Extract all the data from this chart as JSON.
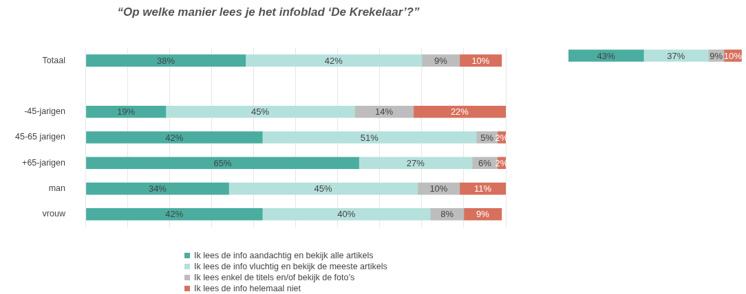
{
  "chart_data": [
    {
      "type": "bar",
      "orientation": "horizontal",
      "stacked": true,
      "title": "“Op welke manier lees je het infoblad ‘De Krekelaar’?”",
      "categories": [
        "Totaal",
        null,
        "-45-jarigen",
        "45-65 jarigen",
        "+65-jarigen",
        "man",
        "vrouw"
      ],
      "series": [
        {
          "name": "Ik lees de info aandachtig en bekijk alle artikels",
          "color": "#4aada0",
          "values": [
            38,
            null,
            19,
            42,
            65,
            34,
            42
          ],
          "value_labels": [
            "38%",
            null,
            "19%",
            "42%",
            "65%",
            "34%",
            "42%"
          ]
        },
        {
          "name": "Ik lees de info vluchtig en bekijk de meeste artikels",
          "color": "#b5e1dc",
          "values": [
            42,
            null,
            45,
            51,
            27,
            45,
            40
          ],
          "value_labels": [
            "42%",
            null,
            "45%",
            "51%",
            "27%",
            "45%",
            "40%"
          ]
        },
        {
          "name": "Ik lees enkel de titels en/of bekijk de foto’s",
          "color": "#bdbdbd",
          "values": [
            9,
            null,
            14,
            5,
            6,
            10,
            8
          ],
          "value_labels": [
            "9%",
            null,
            "14%",
            "5%",
            "6%",
            "10%",
            "8%"
          ]
        },
        {
          "name": "Ik lees de info helemaal niet",
          "color": "#d7705c",
          "values": [
            10,
            null,
            22,
            2,
            2,
            11,
            9
          ],
          "value_labels": [
            "10%",
            null,
            "22%",
            "2%",
            "2%",
            "11%",
            "9%"
          ]
        }
      ],
      "grid": "x",
      "tick_labels": "y",
      "legend": "bottom"
    },
    {
      "type": "bar",
      "orientation": "horizontal",
      "stacked": true,
      "categories": [
        null
      ],
      "series": [
        {
          "color": "#4aada0",
          "values": [
            43
          ],
          "value_labels": [
            "43%"
          ]
        },
        {
          "color": "#b5e1dc",
          "values": [
            37
          ],
          "value_labels": [
            "37%"
          ]
        },
        {
          "color": "#bdbdbd",
          "values": [
            9
          ],
          "value_labels": [
            "9%"
          ]
        },
        {
          "color": "#d7705c",
          "values": [
            10
          ],
          "value_labels": [
            "10%"
          ]
        }
      ],
      "tick_labels": false
    }
  ]
}
